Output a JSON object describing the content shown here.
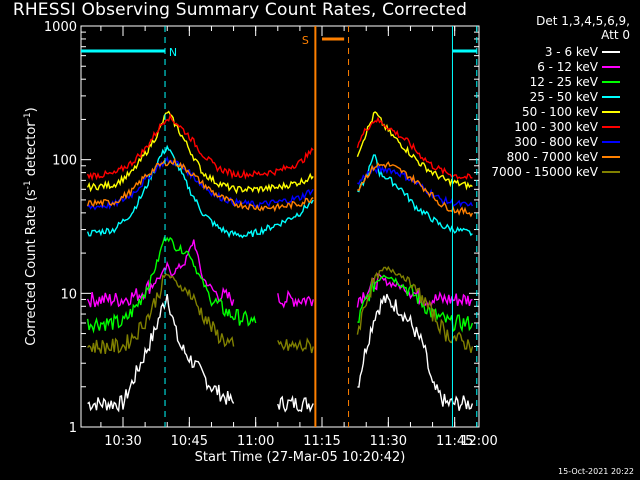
{
  "chart_data": {
    "type": "line",
    "title": "RHESSI Observing Summary Count Rates, Corrected",
    "xlabel": "Start Time (27-Mar-05 10:20:42)",
    "ylabel_parts": [
      "Corrected Count Rate (s",
      "-1",
      " detector",
      "-1",
      ")"
    ],
    "yscale": "log",
    "ylim": [
      1,
      1000
    ],
    "xlim_minutes": [
      10.5,
      100.5
    ],
    "x_ticks": [
      {
        "t": 20,
        "label": "10:30"
      },
      {
        "t": 35,
        "label": "10:45"
      },
      {
        "t": 50,
        "label": "11:00"
      },
      {
        "t": 65,
        "label": "11:15"
      },
      {
        "t": 80,
        "label": "11:30"
      },
      {
        "t": 95,
        "label": "11:45"
      },
      {
        "t": 110,
        "label": "12:00"
      }
    ],
    "y_ticks": [
      {
        "v": 1,
        "label": "1"
      },
      {
        "v": 10,
        "label": "10"
      },
      {
        "v": 100,
        "label": "100"
      },
      {
        "v": 1000,
        "label": "1000"
      }
    ],
    "legend_header": [
      "Det 1,3,4,5,6,9,",
      "Att 0"
    ],
    "series": [
      {
        "name": "3 - 6 keV",
        "color": "#ffffff",
        "points": [
          [
            12,
            1.5
          ],
          [
            20,
            1.5
          ],
          [
            24,
            3
          ],
          [
            27,
            5
          ],
          [
            29,
            8
          ],
          [
            30,
            10
          ],
          [
            31,
            7
          ],
          [
            32,
            5
          ],
          [
            33,
            4
          ],
          [
            36,
            3
          ],
          [
            40,
            2
          ],
          [
            45,
            1.5
          ],
          [
            55,
            1.5
          ],
          [
            63,
            1.5
          ],
          [
            73,
            2
          ],
          [
            75,
            4
          ],
          [
            77,
            7
          ],
          [
            79,
            9
          ],
          [
            82,
            8
          ],
          [
            85,
            6
          ],
          [
            88,
            4
          ],
          [
            90,
            2
          ],
          [
            93,
            1.5
          ],
          [
            99,
            1.5
          ]
        ]
      },
      {
        "name": "6 - 12 keV",
        "color": "#ff00ff",
        "points": [
          [
            12,
            9
          ],
          [
            20,
            9
          ],
          [
            24,
            10
          ],
          [
            27,
            12
          ],
          [
            29,
            14
          ],
          [
            30,
            16
          ],
          [
            31,
            14
          ],
          [
            34,
            17
          ],
          [
            36,
            25
          ],
          [
            38,
            13
          ],
          [
            41,
            10
          ],
          [
            45,
            9
          ],
          [
            55,
            9
          ],
          [
            63,
            9
          ],
          [
            73,
            9
          ],
          [
            76,
            11
          ],
          [
            78,
            13
          ],
          [
            80,
            12
          ],
          [
            84,
            11
          ],
          [
            88,
            9
          ],
          [
            92,
            9
          ],
          [
            99,
            9
          ]
        ]
      },
      {
        "name": "12 - 25 keV",
        "color": "#00ff00",
        "points": [
          [
            12,
            6
          ],
          [
            20,
            6
          ],
          [
            23,
            8
          ],
          [
            26,
            12
          ],
          [
            28,
            18
          ],
          [
            29,
            24
          ],
          [
            30,
            27
          ],
          [
            32,
            22
          ],
          [
            35,
            20
          ],
          [
            37,
            14
          ],
          [
            40,
            9
          ],
          [
            44,
            7
          ],
          [
            50,
            6
          ],
          [
            63,
            6
          ],
          [
            73,
            6
          ],
          [
            75,
            9
          ],
          [
            77,
            12
          ],
          [
            79,
            14
          ],
          [
            81,
            13
          ],
          [
            84,
            11
          ],
          [
            87,
            9
          ],
          [
            90,
            7
          ],
          [
            94,
            6
          ],
          [
            99,
            6
          ]
        ]
      },
      {
        "name": "25 - 50 keV",
        "color": "#00ffff",
        "points": [
          [
            12,
            28
          ],
          [
            18,
            30
          ],
          [
            22,
            40
          ],
          [
            25,
            60
          ],
          [
            28,
            100
          ],
          [
            30,
            125
          ],
          [
            32,
            95
          ],
          [
            35,
            60
          ],
          [
            38,
            40
          ],
          [
            41,
            32
          ],
          [
            44,
            28
          ],
          [
            48,
            27
          ],
          [
            52,
            30
          ],
          [
            56,
            34
          ],
          [
            60,
            40
          ],
          [
            63,
            50
          ],
          [
            73,
            55
          ],
          [
            75,
            75
          ],
          [
            77,
            110
          ],
          [
            78,
            80
          ],
          [
            80,
            72
          ],
          [
            83,
            60
          ],
          [
            86,
            45
          ],
          [
            89,
            38
          ],
          [
            92,
            32
          ],
          [
            95,
            30
          ],
          [
            99,
            28
          ]
        ]
      },
      {
        "name": "50 - 100 keV",
        "color": "#ffff00",
        "points": [
          [
            12,
            62
          ],
          [
            18,
            65
          ],
          [
            22,
            80
          ],
          [
            25,
            110
          ],
          [
            28,
            160
          ],
          [
            30,
            230
          ],
          [
            32,
            180
          ],
          [
            35,
            120
          ],
          [
            38,
            80
          ],
          [
            41,
            68
          ],
          [
            45,
            60
          ],
          [
            50,
            60
          ],
          [
            55,
            62
          ],
          [
            60,
            68
          ],
          [
            63,
            75
          ],
          [
            73,
            110
          ],
          [
            75,
            160
          ],
          [
            77,
            225
          ],
          [
            79,
            180
          ],
          [
            81,
            150
          ],
          [
            84,
            120
          ],
          [
            87,
            95
          ],
          [
            90,
            80
          ],
          [
            93,
            70
          ],
          [
            96,
            66
          ],
          [
            99,
            63
          ]
        ]
      },
      {
        "name": "100 - 300 keV",
        "color": "#ff0000",
        "points": [
          [
            12,
            76
          ],
          [
            18,
            78
          ],
          [
            22,
            95
          ],
          [
            25,
            120
          ],
          [
            28,
            170
          ],
          [
            30,
            210
          ],
          [
            32,
            190
          ],
          [
            35,
            150
          ],
          [
            38,
            110
          ],
          [
            41,
            88
          ],
          [
            45,
            78
          ],
          [
            50,
            78
          ],
          [
            55,
            82
          ],
          [
            60,
            95
          ],
          [
            63,
            118
          ],
          [
            73,
            130
          ],
          [
            75,
            170
          ],
          [
            77,
            200
          ],
          [
            79,
            185
          ],
          [
            81,
            165
          ],
          [
            84,
            140
          ],
          [
            87,
            110
          ],
          [
            90,
            90
          ],
          [
            93,
            80
          ],
          [
            96,
            75
          ],
          [
            99,
            73
          ]
        ]
      },
      {
        "name": "300 - 800 keV",
        "color": "#0000ff",
        "points": [
          [
            12,
            44
          ],
          [
            18,
            46
          ],
          [
            22,
            55
          ],
          [
            25,
            70
          ],
          [
            28,
            90
          ],
          [
            30,
            98
          ],
          [
            32,
            95
          ],
          [
            35,
            80
          ],
          [
            38,
            64
          ],
          [
            41,
            54
          ],
          [
            45,
            48
          ],
          [
            50,
            46
          ],
          [
            55,
            48
          ],
          [
            60,
            52
          ],
          [
            63,
            60
          ],
          [
            73,
            65
          ],
          [
            75,
            78
          ],
          [
            77,
            84
          ],
          [
            80,
            85
          ],
          [
            83,
            78
          ],
          [
            86,
            68
          ],
          [
            89,
            58
          ],
          [
            92,
            50
          ],
          [
            95,
            47
          ],
          [
            99,
            45
          ]
        ]
      },
      {
        "name": "800 - 7000 keV",
        "color": "#ff8000",
        "points": [
          [
            12,
            47
          ],
          [
            18,
            48
          ],
          [
            22,
            58
          ],
          [
            25,
            75
          ],
          [
            28,
            90
          ],
          [
            30,
            96
          ],
          [
            32,
            95
          ],
          [
            35,
            82
          ],
          [
            38,
            66
          ],
          [
            41,
            55
          ],
          [
            45,
            47
          ],
          [
            50,
            44
          ],
          [
            55,
            44
          ],
          [
            60,
            47
          ],
          [
            63,
            52
          ],
          [
            73,
            60
          ],
          [
            75,
            75
          ],
          [
            77,
            90
          ],
          [
            80,
            92
          ],
          [
            83,
            82
          ],
          [
            86,
            70
          ],
          [
            89,
            58
          ],
          [
            92,
            46
          ],
          [
            95,
            42
          ],
          [
            99,
            40
          ]
        ]
      },
      {
        "name": "7000 - 15000 keV",
        "color": "#808000",
        "points": [
          [
            12,
            4
          ],
          [
            20,
            4
          ],
          [
            23,
            5
          ],
          [
            26,
            7
          ],
          [
            28,
            10
          ],
          [
            30,
            14
          ],
          [
            32,
            12
          ],
          [
            35,
            10
          ],
          [
            38,
            7
          ],
          [
            41,
            5
          ],
          [
            45,
            4
          ],
          [
            55,
            4
          ],
          [
            63,
            4
          ],
          [
            73,
            5
          ],
          [
            75,
            9
          ],
          [
            77,
            13
          ],
          [
            79,
            15
          ],
          [
            81,
            15
          ],
          [
            84,
            13
          ],
          [
            87,
            10
          ],
          [
            90,
            7
          ],
          [
            93,
            5
          ],
          [
            99,
            4
          ]
        ]
      }
    ],
    "annotations": [
      {
        "label": "N",
        "color": "#00ffff",
        "dashed_t": [
          29.5,
          100
        ],
        "solid_t": [
          94.5
        ],
        "bar_t": [
          [
            10.5,
            29.5
          ],
          [
            94.5,
            100
          ]
        ],
        "bar_v": 650
      },
      {
        "label": "S",
        "color": "#ff8000",
        "dashed_t": [
          71
        ],
        "solid_t": [
          63.5
        ],
        "bar_t": [
          [
            65,
            70
          ]
        ],
        "bar_v": 800
      }
    ]
  },
  "timestamp": "15-Oct-2021 20:22"
}
